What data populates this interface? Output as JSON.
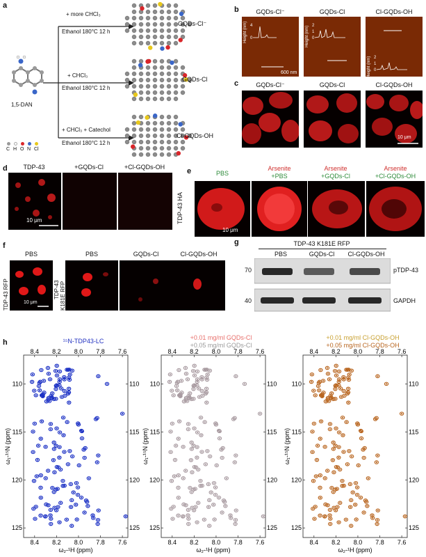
{
  "panels": {
    "a": "a",
    "b": "b",
    "c": "c",
    "d": "d",
    "e": "e",
    "f": "f",
    "g": "g",
    "h": "h"
  },
  "a": {
    "start_molecule": "1,5-DAN",
    "arrows": [
      {
        "reagent": "+ more CHCl₃",
        "conditions": "Ethanol 180°C 12 h",
        "product": "GQDs-Cl⁻"
      },
      {
        "reagent": "+   CHCl₃",
        "conditions": "Ethanol 180°C 12 h",
        "product": "GQDs-Cl"
      },
      {
        "reagent": "+ CHCl₃ + Catechol",
        "conditions": "Ethanol 180°C 12 h",
        "product": "Cl-GQDs-OH"
      }
    ],
    "legend": [
      {
        "label": "C",
        "color": "#9a9a9a"
      },
      {
        "label": "H",
        "color": "#ffffff"
      },
      {
        "label": "O",
        "color": "#d9262a"
      },
      {
        "label": "N",
        "color": "#3a66c8"
      },
      {
        "label": "Cl",
        "color": "#e8c81c"
      }
    ]
  },
  "b": {
    "titles": [
      "GQDs-Cl⁻",
      "GQDs-Cl",
      "Cl-GQDs-OH"
    ],
    "ylabel": "Height (nm)",
    "ticks1": [
      "4",
      "0"
    ],
    "ticks2": [
      "2",
      "1",
      "0"
    ],
    "ticks3": [
      "2",
      "1",
      "0"
    ],
    "scale": "600 nm"
  },
  "c": {
    "titles": [
      "GQDs-Cl⁻",
      "GQDs-Cl",
      "Cl-GQDs-OH"
    ],
    "scale": "10 μm"
  },
  "d": {
    "titles": [
      "TDP-43",
      "+GQDs-Cl",
      "+Cl-GQDs-OH"
    ],
    "scale": "10 μm"
  },
  "e": {
    "side": "TDP-43 HA",
    "cols": [
      {
        "l1": "PBS",
        "l2": ""
      },
      {
        "l1": "Arsenite",
        "l2": "+PBS"
      },
      {
        "l1": "Arsenite",
        "l2": "+GQDs-Cl"
      },
      {
        "l1": "Arsenite",
        "l2": "+Cl-GQDs-OH"
      }
    ],
    "scale": "10 μm"
  },
  "f": {
    "side1": "TDP-43 RFP",
    "side2a": "TDP-43",
    "side2b": "K181E RFP",
    "titles": [
      "PBS",
      "PBS",
      "GQDs-Cl",
      "Cl-GQDs-OH"
    ],
    "scale": "10 μm"
  },
  "g": {
    "header": "TDP-43 K181E RFP",
    "lanes": [
      "PBS",
      "GQDs-Cl",
      "Cl-GQDs-OH"
    ],
    "mw": [
      "70",
      "40"
    ],
    "bands": [
      "pTDP-43",
      "GAPDH"
    ],
    "ptdp_intensity": [
      1.0,
      0.55,
      0.7
    ],
    "gapdh_intensity": [
      1.0,
      1.0,
      1.0
    ]
  },
  "h": {
    "titles": [
      {
        "l1": "¹⁵N-TDP43-LC",
        "l2": ""
      },
      {
        "l1": "+0.01 mg/ml GQDs-Cl",
        "l2": "+0.05 mg/ml GQDs-Cl"
      },
      {
        "l1": "+0.01 mg/ml Cl-GQDs-OH",
        "l2": "+0.05 mg/ml Cl-GQDs-OH"
      }
    ],
    "xticks": [
      "8.4",
      "8.2",
      "8.0",
      "7.8",
      "7.6"
    ],
    "yticks": [
      "110",
      "115",
      "120",
      "125"
    ],
    "xlabel": "ω₂-¹H (ppm)",
    "ylabel": "ω₁-¹⁵N (ppm)",
    "colors": [
      "#1a2fc4",
      "#a89aa0",
      "#b8651f"
    ]
  }
}
